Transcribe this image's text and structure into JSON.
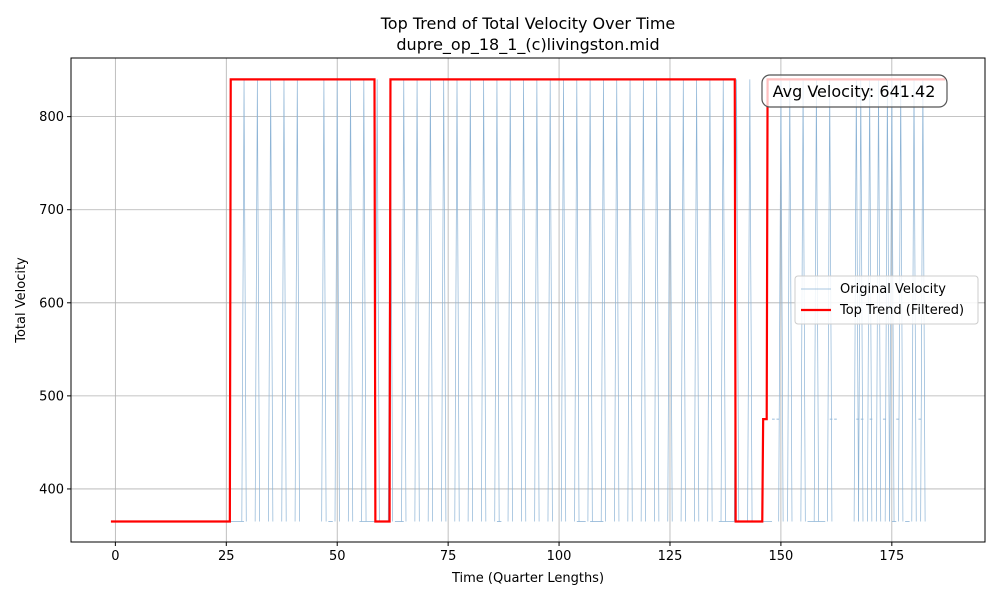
{
  "chart_data": {
    "type": "line",
    "title": "Top Trend of Total Velocity Over Time",
    "subtitle": "dupre_op_18_1_(c)livingston.mid",
    "xlabel": "Time (Quarter Lengths)",
    "ylabel": "Total Velocity",
    "xlim": [
      -10,
      196
    ],
    "ylim": [
      343,
      863
    ],
    "xticks": [
      0,
      25,
      50,
      75,
      100,
      125,
      150,
      175
    ],
    "yticks": [
      400,
      500,
      600,
      700,
      800
    ],
    "grid": true,
    "legend_position": "center-right",
    "annotation": "Avg Velocity: 641.42",
    "colors": {
      "original": "#8db4d6",
      "trend": "#ff0000",
      "grid": "#b0b0b0"
    },
    "series": [
      {
        "name": "Original Velocity",
        "style": "thin",
        "low": 365,
        "high": 840,
        "low_intervals": [
          [
            -1,
            29
          ],
          [
            48,
            49
          ],
          [
            55,
            62
          ],
          [
            63,
            65
          ],
          [
            86,
            87
          ],
          [
            104,
            106
          ],
          [
            107,
            110
          ],
          [
            136,
            148
          ],
          [
            156,
            160
          ],
          [
            175,
            176
          ],
          [
            178,
            179
          ]
        ],
        "spikes": [
          29,
          32,
          35,
          38,
          41,
          47,
          50,
          53,
          56,
          59,
          62,
          65,
          68,
          71,
          74,
          77,
          80,
          83,
          86,
          89,
          92,
          95,
          98,
          101,
          104,
          107,
          110,
          113,
          116,
          119,
          122,
          125,
          128,
          131,
          134,
          137,
          140,
          143,
          150,
          152,
          155,
          158,
          161,
          167,
          168,
          170,
          172,
          174,
          175,
          177,
          180,
          182
        ],
        "mid_points": [
          [
            148,
            475
          ],
          [
            149,
            475
          ],
          [
            161,
            475
          ],
          [
            162,
            475
          ],
          [
            167,
            475
          ],
          [
            168,
            475
          ],
          [
            170,
            475
          ],
          [
            173,
            475
          ],
          [
            176,
            475
          ],
          [
            181,
            475
          ]
        ]
      },
      {
        "name": "Top Trend (Filtered)",
        "style": "thick",
        "x": [
          -1,
          25.8,
          26,
          58.4,
          58.6,
          61.8,
          62,
          139.6,
          139.8,
          145.8,
          146,
          146.8,
          147,
          187
        ],
        "y": [
          365,
          365,
          840,
          840,
          365,
          365,
          840,
          840,
          365,
          365,
          475,
          475,
          840,
          840
        ]
      }
    ]
  }
}
